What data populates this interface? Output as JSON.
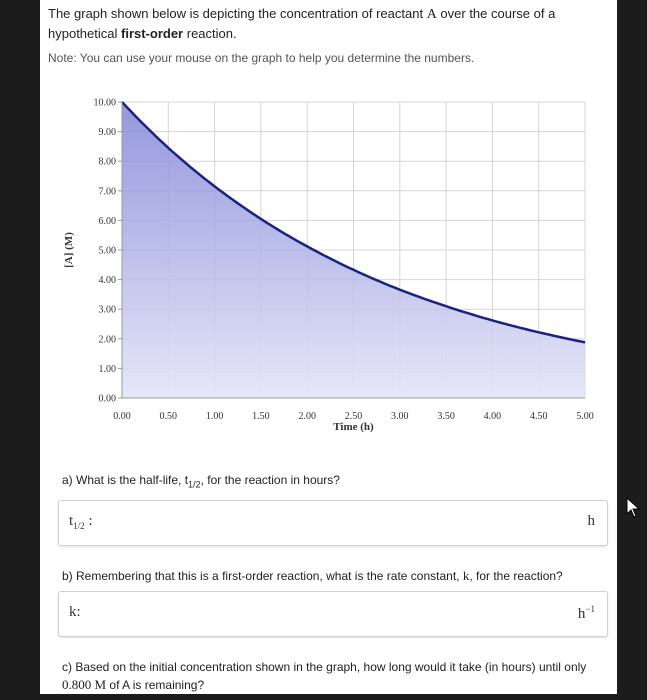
{
  "intro": {
    "line1_before": "The graph shown below is depicting the concentration of reactant ",
    "line1_var": "A",
    "line1_after": " over the course of a",
    "line2_before": "hypothetical ",
    "line2_bold": "first-order",
    "line2_after": " reaction."
  },
  "note": "Note: You can use your mouse on the graph to help you determine the numbers.",
  "chart_data": {
    "type": "area",
    "xlabel": "Time (h)",
    "ylabel": "[A] (M)",
    "xlim": [
      0,
      5
    ],
    "ylim": [
      0,
      10
    ],
    "x_ticks": [
      "0.00",
      "0.50",
      "1.00",
      "1.50",
      "2.00",
      "2.50",
      "3.00",
      "3.50",
      "4.00",
      "4.50",
      "5.00"
    ],
    "y_ticks": [
      "0.00",
      "1.00",
      "2.00",
      "3.00",
      "4.00",
      "5.00",
      "6.00",
      "7.00",
      "8.00",
      "9.00",
      "10.00"
    ],
    "grid": true,
    "series": [
      {
        "x": [
          0,
          0.5,
          1,
          1.5,
          2,
          2.5,
          3,
          3.5,
          4,
          4.5,
          5
        ],
        "y": [
          10.0,
          8.45,
          7.15,
          6.05,
          5.12,
          4.33,
          3.66,
          3.1,
          2.62,
          2.22,
          1.88
        ]
      }
    ],
    "colors": {
      "line": "#1a237e",
      "fill": "#7b7fd6",
      "fill_light": "#e3e4f7",
      "grid": "#d5d5d5"
    }
  },
  "questions": {
    "a_before": "a) What is the half-life, t",
    "a_sub": "1/2",
    "a_after": ", for the reaction in hours?",
    "a_label_main": "t",
    "a_label_sub": "1/2",
    "a_label_colon": " :",
    "a_unit": "h",
    "b_before": "b) Remembering that this is a first-order reaction, what is the rate constant, ",
    "b_var": "k",
    "b_after": ", for the reaction?",
    "b_label": "k:",
    "b_unit": "h",
    "b_unit_sup": "−1",
    "c_line1": "c) Based on the initial concentration shown in the graph, how long would it take (in hours) until only",
    "c_value": "0.800 M",
    "c_line2_after": " of A is remaining?"
  }
}
